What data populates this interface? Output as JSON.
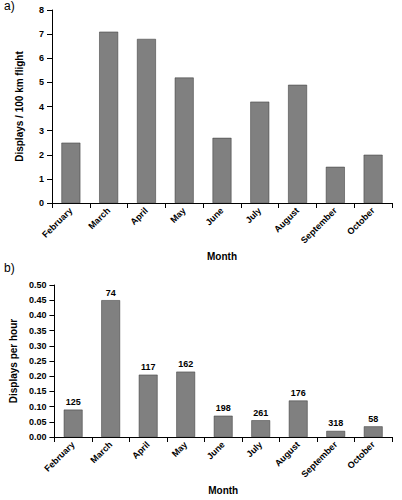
{
  "chart_data": [
    {
      "type": "bar",
      "title": "a)",
      "categories": [
        "February",
        "March",
        "April",
        "May",
        "June",
        "July",
        "August",
        "September",
        "October"
      ],
      "values": [
        2.5,
        7.1,
        6.8,
        5.2,
        2.7,
        4.2,
        4.9,
        1.5,
        2.0
      ],
      "color": "#808080",
      "x_label": "Month",
      "y_label": "Displays / 100 km flight",
      "ylim": [
        0,
        8
      ],
      "yticks": [
        0,
        1,
        2,
        3,
        4,
        5,
        6,
        7,
        8
      ],
      "grid": false
    },
    {
      "type": "bar",
      "title": "b)",
      "categories": [
        "February",
        "March",
        "April",
        "May",
        "June",
        "July",
        "August",
        "September",
        "October"
      ],
      "values": [
        0.09,
        0.45,
        0.205,
        0.215,
        0.07,
        0.055,
        0.12,
        0.02,
        0.035
      ],
      "n": [
        125,
        74,
        117,
        162,
        198,
        261,
        176,
        318,
        58
      ],
      "color": "#808080",
      "x_label": "Month",
      "y_label": "Displays per hour",
      "ylim": [
        0,
        0.5
      ],
      "yticks": [
        {
          "value": 0,
          "label": "0.00"
        },
        {
          "value": 0.05,
          "label": "0.05"
        },
        {
          "value": 0.1,
          "label": "0.10"
        },
        {
          "value": 0.15,
          "label": "0.15"
        },
        {
          "value": 0.2,
          "label": "0.20"
        },
        {
          "value": 0.25,
          "label": "0.25"
        },
        {
          "value": 0.3,
          "label": "0.30"
        },
        {
          "value": 0.35,
          "label": "0.35"
        },
        {
          "value": 0.4,
          "label": "0.40"
        },
        {
          "value": 0.45,
          "label": "0.45"
        },
        {
          "value": 0.5,
          "label": "0.50"
        }
      ],
      "grid": false
    }
  ]
}
